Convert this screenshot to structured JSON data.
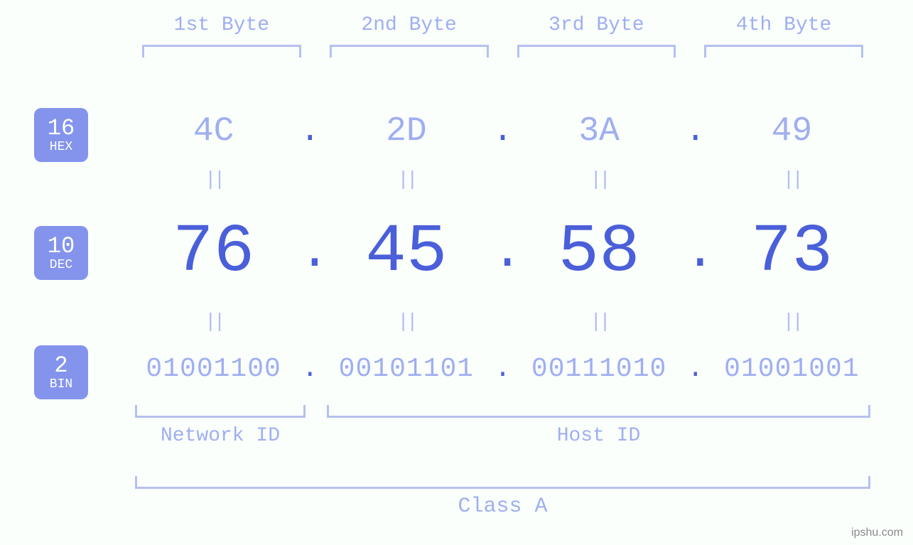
{
  "colors": {
    "background": "#fafffc",
    "light": "#a0aef0",
    "lighter": "#b3beef",
    "dark": "#4a5fd9",
    "badge": "#8494ec",
    "bracket": "#b6c0ef"
  },
  "byte_headers": [
    "1st Byte",
    "2nd Byte",
    "3rd Byte",
    "4th Byte"
  ],
  "badges": {
    "hex": {
      "num": "16",
      "txt": "HEX"
    },
    "dec": {
      "num": "10",
      "txt": "DEC"
    },
    "bin": {
      "num": "2",
      "txt": "BIN"
    }
  },
  "hex": [
    "4C",
    "2D",
    "3A",
    "49"
  ],
  "dec": [
    "76",
    "45",
    "58",
    "73"
  ],
  "bin": [
    "01001100",
    "00101101",
    "00111010",
    "01001001"
  ],
  "eq": "||",
  "dot": ".",
  "network_id_label": "Network ID",
  "host_id_label": "Host ID",
  "class_label": "Class A",
  "watermark": "ipshu.com"
}
